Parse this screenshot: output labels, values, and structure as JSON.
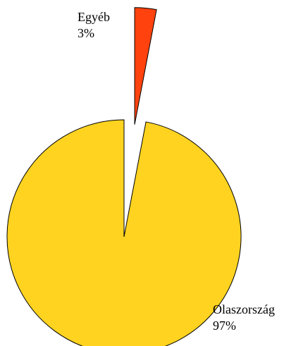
{
  "chart_data": {
    "type": "pie",
    "categories": [
      "Egyéb",
      "Olaszország"
    ],
    "values": [
      3,
      97
    ],
    "value_labels": [
      "3%",
      "97%"
    ],
    "colors": [
      "#ff420e",
      "#ffd320"
    ]
  }
}
